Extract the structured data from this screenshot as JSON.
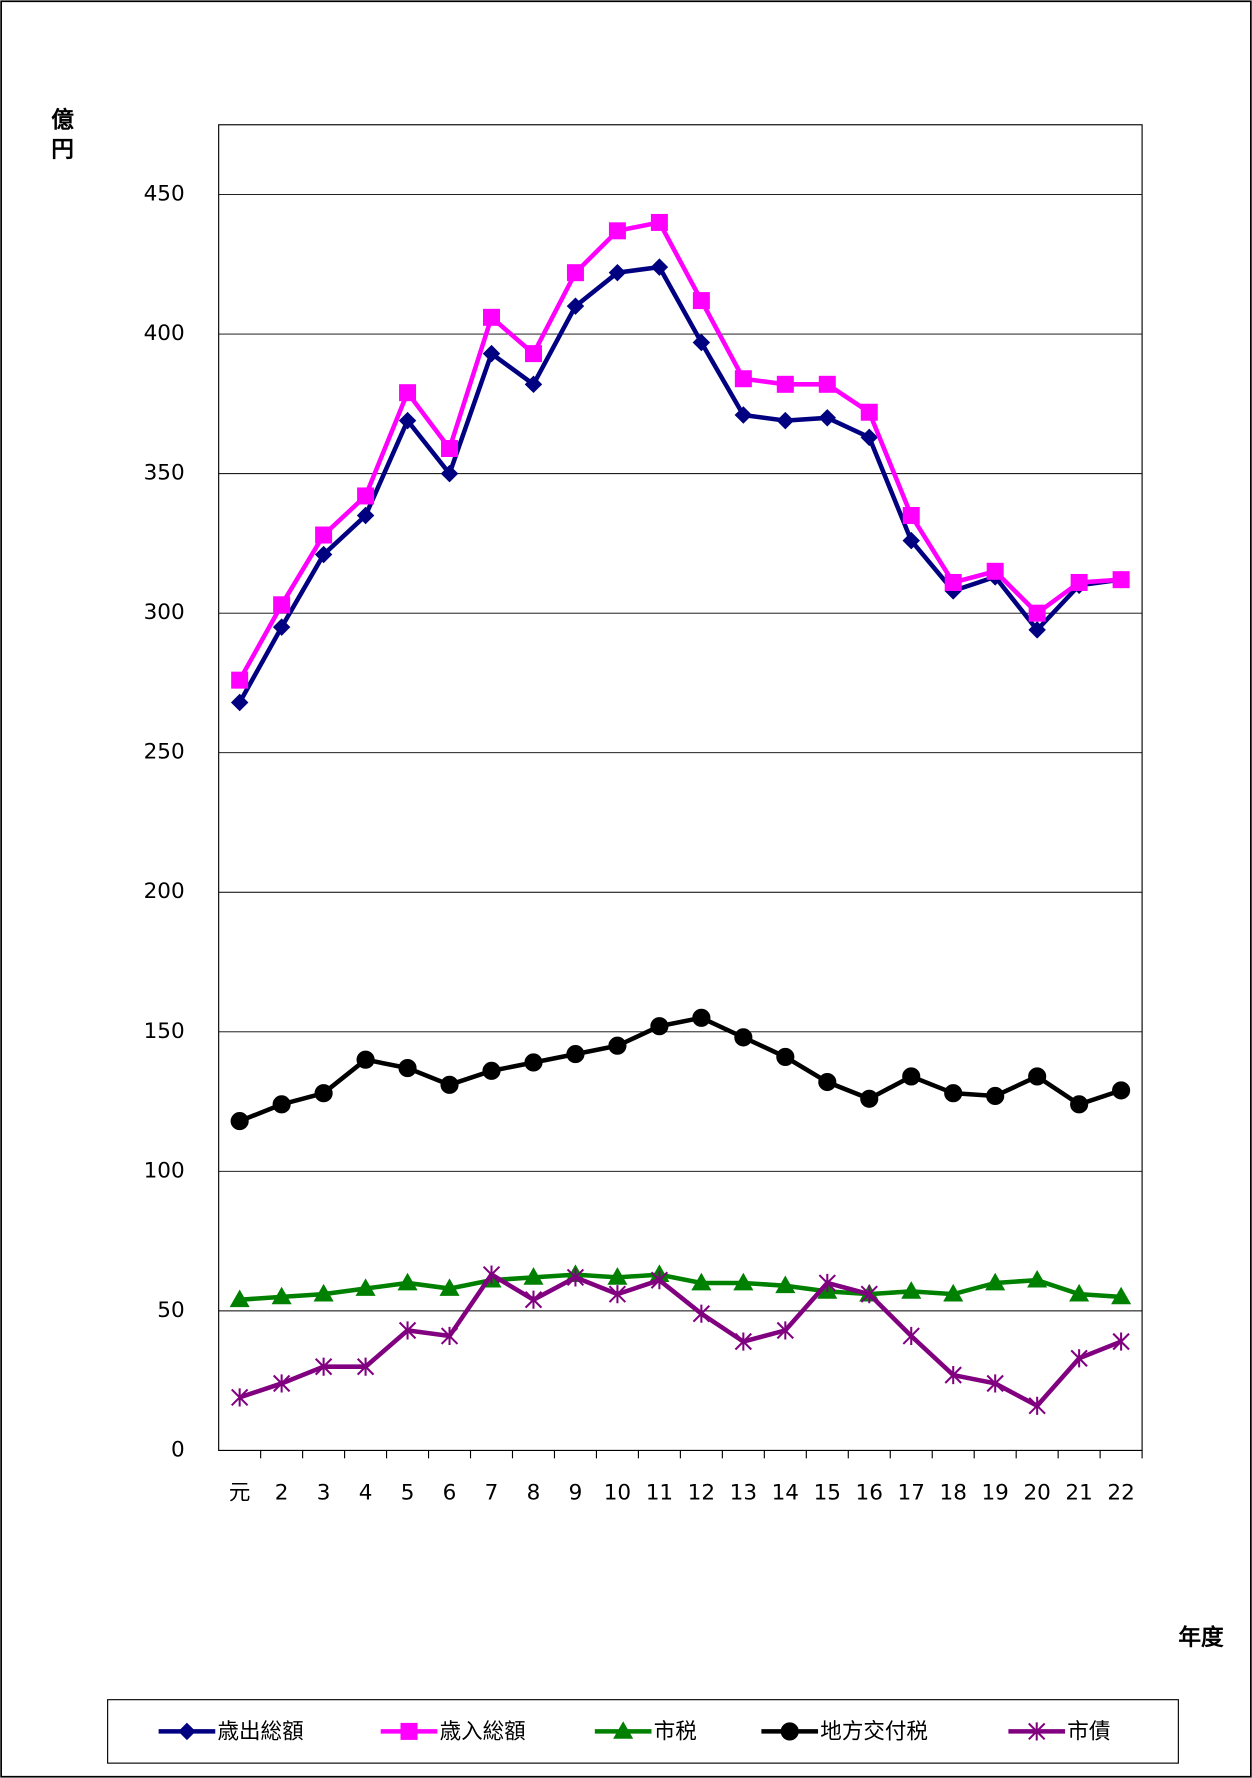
{
  "chart_data": {
    "type": "line",
    "y_label": "億円",
    "x_label": "年度",
    "categories": [
      "元",
      "2",
      "3",
      "4",
      "5",
      "6",
      "7",
      "8",
      "9",
      "10",
      "11",
      "12",
      "13",
      "14",
      "15",
      "16",
      "17",
      "18",
      "19",
      "20",
      "21",
      "22"
    ],
    "series": [
      {
        "name": "歳出総額",
        "color": "#000080",
        "marker": "diamond",
        "values": [
          268,
          295,
          321,
          335,
          369,
          350,
          393,
          382,
          410,
          422,
          424,
          397,
          371,
          369,
          370,
          363,
          326,
          308,
          313,
          294,
          310,
          312
        ]
      },
      {
        "name": "歳入総額",
        "color": "#ff00ff",
        "marker": "square",
        "values": [
          276,
          303,
          328,
          342,
          379,
          359,
          406,
          393,
          422,
          437,
          440,
          412,
          384,
          382,
          382,
          372,
          335,
          311,
          315,
          300,
          311,
          312
        ]
      },
      {
        "name": "市税",
        "color": "#008000",
        "marker": "triangle",
        "values": [
          54,
          55,
          56,
          58,
          60,
          58,
          61,
          62,
          63,
          62,
          63,
          60,
          60,
          59,
          57,
          56,
          57,
          56,
          60,
          61,
          56,
          55
        ]
      },
      {
        "name": "地方交付税",
        "color": "#000000",
        "marker": "circle",
        "values": [
          118,
          124,
          128,
          140,
          137,
          131,
          136,
          139,
          142,
          145,
          152,
          155,
          148,
          141,
          132,
          126,
          134,
          128,
          127,
          134,
          124,
          129
        ]
      },
      {
        "name": "市債",
        "color": "#800080",
        "marker": "star",
        "values": [
          19,
          24,
          30,
          30,
          43,
          41,
          63,
          54,
          62,
          56,
          61,
          49,
          39,
          43,
          60,
          56,
          41,
          27,
          24,
          16,
          33,
          39
        ]
      }
    ],
    "ylim": [
      0,
      475
    ],
    "yticks": [
      0,
      50,
      100,
      150,
      200,
      250,
      300,
      350,
      400,
      450
    ],
    "grid": true,
    "legend": "bottom"
  }
}
